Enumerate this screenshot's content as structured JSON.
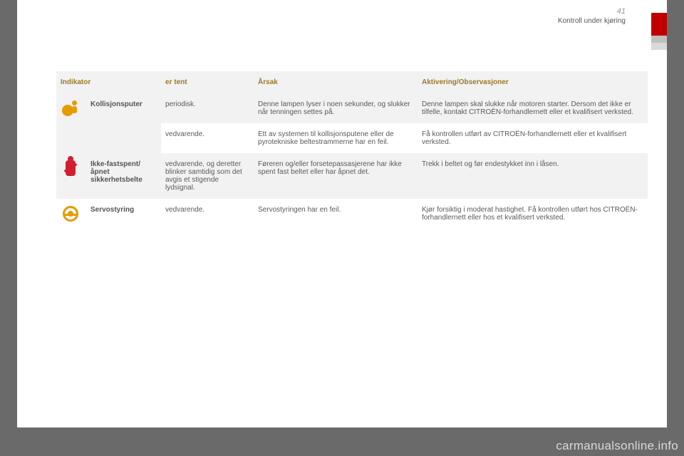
{
  "page": {
    "number": "41",
    "section": "Kontroll under kjøring"
  },
  "headers": {
    "indicator": "Indikator",
    "state": "er tent",
    "cause": "Årsak",
    "action": "Aktivering/Observasjoner"
  },
  "rows": [
    {
      "icon": "airbag",
      "name": "Kollisjonsputer",
      "state": "periodisk.",
      "cause": "Denne lampen lyser i noen sekunder, og slukker når tenningen settes på.",
      "action": "Denne lampen skal slukke når motoren starter. Dersom det ikke er tilfelle, kontakt CITROËN-forhandlernett eller et kvalifisert verksted.",
      "bg": "gray"
    },
    {
      "icon": "",
      "name": "",
      "state": "vedvarende.",
      "cause": "Ett av systemen til kollisjonsputene eller de pyrotekniske beltestrammerne har en feil.",
      "action": "Få kontrollen utført av CITROËN-forhandlernett eller et kvalifisert verksted.",
      "bg": "white"
    },
    {
      "icon": "belt",
      "name": "Ikke-fastspent/\nåpnet sikkerhetsbelte",
      "state": "vedvarende, og deretter blinker samtidig som det avgis et stigende lydsignal.",
      "cause": "Føreren og/eller forsetepassasjerene har ikke spent fast beltet eller har åpnet det.",
      "action": "Trekk i beltet og før endestykket inn i låsen.",
      "bg": "gray"
    },
    {
      "icon": "steer",
      "name": "Servostyring",
      "state": "vedvarende.",
      "cause": "Servostyringen har en feil.",
      "action": "Kjør forsiktig i moderat hastighet. Få kontrollen utført hos CITROËN-forhandlernett eller hos et kvalifisert verksted.",
      "bg": "white"
    }
  ],
  "watermark": "carmanualsonline.info",
  "colors": {
    "header_text": "#9a7a2a",
    "body_text": "#5a5a5a",
    "row_gray": "#f2f2f2",
    "airbag": "#e69b00",
    "belt": "#d02030",
    "steer": "#e69b00",
    "tab_red": "#c00000"
  }
}
